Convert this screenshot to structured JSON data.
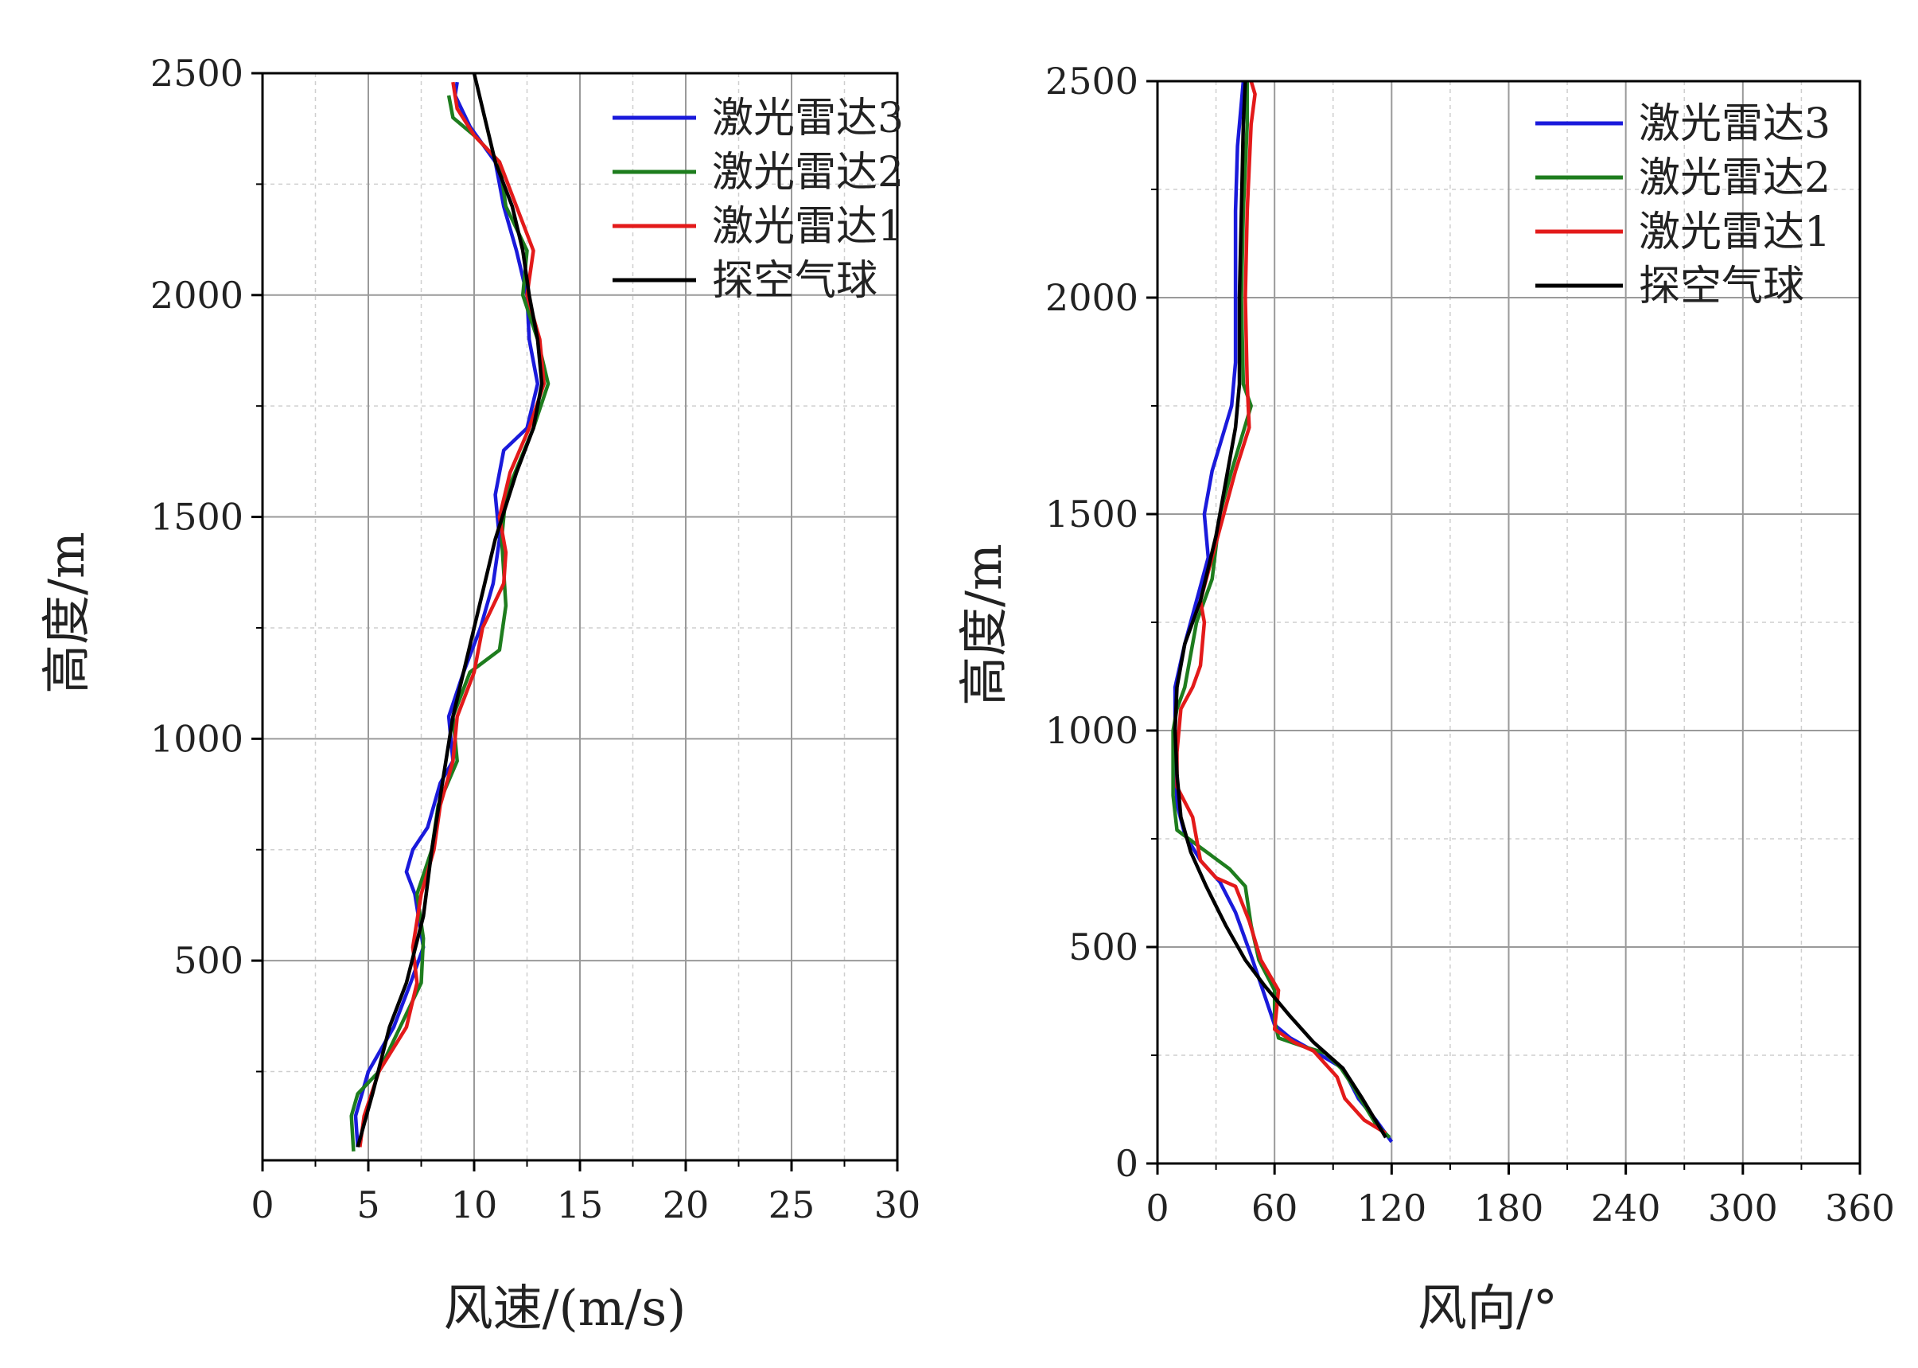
{
  "chart_data": [
    {
      "type": "line",
      "xlabel": "风速/(m/s)",
      "ylabel": "高度/m",
      "xlim": [
        0,
        30
      ],
      "ylim": [
        50,
        2500
      ],
      "xticks": [
        0,
        5,
        10,
        15,
        20,
        25,
        30
      ],
      "yticks": [
        500,
        1000,
        1500,
        2000,
        2500
      ],
      "grid": true,
      "legend_position": "top-right",
      "colors": {
        "激光雷达3": "#1a1adb",
        "激光雷达2": "#1e7d1e",
        "激光雷达1": "#e31a1a",
        "探空气球": "#000000"
      },
      "series": [
        {
          "name": "激光雷达3",
          "points": [
            [
              4.5,
              80
            ],
            [
              4.4,
              150
            ],
            [
              5.0,
              250
            ],
            [
              6.2,
              350
            ],
            [
              7.0,
              450
            ],
            [
              7.6,
              530
            ],
            [
              7.2,
              650
            ],
            [
              6.8,
              700
            ],
            [
              7.1,
              750
            ],
            [
              7.8,
              800
            ],
            [
              8.4,
              900
            ],
            [
              9.0,
              950
            ],
            [
              8.8,
              1050
            ],
            [
              9.5,
              1150
            ],
            [
              10.3,
              1250
            ],
            [
              10.9,
              1350
            ],
            [
              11.2,
              1450
            ],
            [
              11.0,
              1550
            ],
            [
              11.4,
              1650
            ],
            [
              12.5,
              1700
            ],
            [
              13.0,
              1800
            ],
            [
              12.6,
              1900
            ],
            [
              12.5,
              2000
            ],
            [
              12.0,
              2100
            ],
            [
              11.4,
              2200
            ],
            [
              11.0,
              2300
            ],
            [
              9.8,
              2380
            ],
            [
              9.1,
              2450
            ],
            [
              9.2,
              2480
            ]
          ]
        },
        {
          "name": "激光雷达2",
          "points": [
            [
              4.3,
              70
            ],
            [
              4.2,
              150
            ],
            [
              4.5,
              200
            ],
            [
              5.5,
              250
            ],
            [
              6.5,
              350
            ],
            [
              7.5,
              450
            ],
            [
              7.6,
              550
            ],
            [
              7.3,
              650
            ],
            [
              8.0,
              750
            ],
            [
              8.3,
              850
            ],
            [
              9.2,
              950
            ],
            [
              9.0,
              1050
            ],
            [
              9.8,
              1150
            ],
            [
              11.2,
              1200
            ],
            [
              11.5,
              1300
            ],
            [
              11.3,
              1450
            ],
            [
              11.5,
              1550
            ],
            [
              12.8,
              1700
            ],
            [
              13.5,
              1800
            ],
            [
              13.0,
              1900
            ],
            [
              12.3,
              2000
            ],
            [
              12.5,
              2100
            ],
            [
              11.5,
              2200
            ],
            [
              11.2,
              2300
            ],
            [
              10.0,
              2360
            ],
            [
              9.0,
              2400
            ],
            [
              8.8,
              2450
            ]
          ]
        },
        {
          "name": "激光雷达1",
          "points": [
            [
              4.6,
              80
            ],
            [
              4.8,
              150
            ],
            [
              5.5,
              250
            ],
            [
              6.8,
              350
            ],
            [
              7.3,
              450
            ],
            [
              7.1,
              530
            ],
            [
              7.5,
              650
            ],
            [
              8.1,
              750
            ],
            [
              8.4,
              850
            ],
            [
              9.0,
              950
            ],
            [
              9.2,
              1050
            ],
            [
              10.0,
              1150
            ],
            [
              10.4,
              1250
            ],
            [
              11.4,
              1350
            ],
            [
              11.5,
              1420
            ],
            [
              11.2,
              1500
            ],
            [
              11.7,
              1600
            ],
            [
              12.6,
              1700
            ],
            [
              13.3,
              1800
            ],
            [
              13.1,
              1900
            ],
            [
              12.5,
              2000
            ],
            [
              12.8,
              2100
            ],
            [
              12.0,
              2200
            ],
            [
              11.2,
              2300
            ],
            [
              10.0,
              2360
            ],
            [
              9.2,
              2420
            ],
            [
              9.0,
              2480
            ]
          ]
        },
        {
          "name": "探空气球",
          "points": [
            [
              4.5,
              80
            ],
            [
              5.2,
              200
            ],
            [
              6.0,
              350
            ],
            [
              6.8,
              450
            ],
            [
              7.6,
              600
            ],
            [
              8.0,
              750
            ],
            [
              8.5,
              900
            ],
            [
              9.0,
              1050
            ],
            [
              10.0,
              1250
            ],
            [
              11.0,
              1450
            ],
            [
              12.0,
              1600
            ],
            [
              12.8,
              1700
            ],
            [
              13.2,
              1800
            ],
            [
              13.0,
              1900
            ],
            [
              12.6,
              2000
            ],
            [
              12.3,
              2100
            ],
            [
              11.8,
              2200
            ],
            [
              11.0,
              2300
            ],
            [
              10.5,
              2400
            ],
            [
              10.0,
              2500
            ]
          ]
        }
      ]
    },
    {
      "type": "line",
      "xlabel": "风向/°",
      "ylabel": "高度/m",
      "xlim": [
        0,
        360
      ],
      "ylim": [
        0,
        2500
      ],
      "xticks": [
        0,
        60,
        120,
        180,
        240,
        300,
        360
      ],
      "yticks": [
        0,
        500,
        1000,
        1500,
        2000,
        2500
      ],
      "grid": true,
      "legend_position": "top-right",
      "colors": {
        "激光雷达3": "#1a1adb",
        "激光雷达2": "#1e7d1e",
        "激光雷达1": "#e31a1a",
        "探空气球": "#000000"
      },
      "series": [
        {
          "name": "激光雷达3",
          "points": [
            [
              120,
              50
            ],
            [
              112,
              100
            ],
            [
              103,
              150
            ],
            [
              95,
              220
            ],
            [
              80,
              260
            ],
            [
              68,
              290
            ],
            [
              60,
              320
            ],
            [
              54,
              400
            ],
            [
              48,
              480
            ],
            [
              40,
              580
            ],
            [
              32,
              650
            ],
            [
              22,
              700
            ],
            [
              14,
              760
            ],
            [
              10,
              830
            ],
            [
              9,
              950
            ],
            [
              9,
              1100
            ],
            [
              14,
              1200
            ],
            [
              20,
              1300
            ],
            [
              26,
              1400
            ],
            [
              24,
              1500
            ],
            [
              28,
              1600
            ],
            [
              38,
              1750
            ],
            [
              40,
              1850
            ],
            [
              40,
              2000
            ],
            [
              40,
              2200
            ],
            [
              41,
              2350
            ],
            [
              44,
              2500
            ]
          ]
        },
        {
          "name": "激光雷达2",
          "points": [
            [
              119,
              60
            ],
            [
              112,
              90
            ],
            [
              100,
              180
            ],
            [
              94,
              220
            ],
            [
              86,
              255
            ],
            [
              75,
              270
            ],
            [
              62,
              290
            ],
            [
              60,
              330
            ],
            [
              60,
              400
            ],
            [
              52,
              470
            ],
            [
              48,
              550
            ],
            [
              45,
              640
            ],
            [
              37,
              680
            ],
            [
              22,
              730
            ],
            [
              10,
              770
            ],
            [
              8,
              850
            ],
            [
              8,
              1000
            ],
            [
              10,
              1050
            ],
            [
              14,
              1100
            ],
            [
              20,
              1250
            ],
            [
              28,
              1350
            ],
            [
              32,
              1500
            ],
            [
              38,
              1600
            ],
            [
              48,
              1750
            ],
            [
              44,
              1800
            ],
            [
              43,
              2000
            ],
            [
              44,
              2200
            ],
            [
              46,
              2400
            ],
            [
              46,
              2500
            ]
          ]
        },
        {
          "name": "激光雷达1",
          "points": [
            [
              117,
              70
            ],
            [
              106,
              100
            ],
            [
              96,
              150
            ],
            [
              92,
              200
            ],
            [
              80,
              260
            ],
            [
              70,
              280
            ],
            [
              60,
              310
            ],
            [
              62,
              400
            ],
            [
              53,
              470
            ],
            [
              47,
              560
            ],
            [
              40,
              640
            ],
            [
              30,
              660
            ],
            [
              22,
              700
            ],
            [
              18,
              800
            ],
            [
              10,
              870
            ],
            [
              10,
              950
            ],
            [
              12,
              1050
            ],
            [
              18,
              1100
            ],
            [
              22,
              1150
            ],
            [
              24,
              1250
            ],
            [
              22,
              1300
            ],
            [
              28,
              1400
            ],
            [
              34,
              1500
            ],
            [
              40,
              1600
            ],
            [
              47,
              1700
            ],
            [
              46,
              1800
            ],
            [
              45,
              2000
            ],
            [
              46,
              2200
            ],
            [
              48,
              2400
            ],
            [
              50,
              2470
            ],
            [
              48,
              2500
            ]
          ]
        },
        {
          "name": "探空气球",
          "points": [
            [
              117,
              60
            ],
            [
              105,
              150
            ],
            [
              95,
              220
            ],
            [
              80,
              280
            ],
            [
              68,
              340
            ],
            [
              55,
              410
            ],
            [
              45,
              470
            ],
            [
              35,
              550
            ],
            [
              25,
              640
            ],
            [
              17,
              720
            ],
            [
              12,
              800
            ],
            [
              10,
              900
            ],
            [
              9,
              1000
            ],
            [
              10,
              1100
            ],
            [
              14,
              1200
            ],
            [
              22,
              1300
            ],
            [
              30,
              1450
            ],
            [
              34,
              1550
            ],
            [
              40,
              1700
            ],
            [
              42,
              1800
            ],
            [
              42,
              2000
            ],
            [
              43,
              2200
            ],
            [
              44,
              2400
            ],
            [
              45,
              2500
            ]
          ]
        }
      ]
    }
  ]
}
